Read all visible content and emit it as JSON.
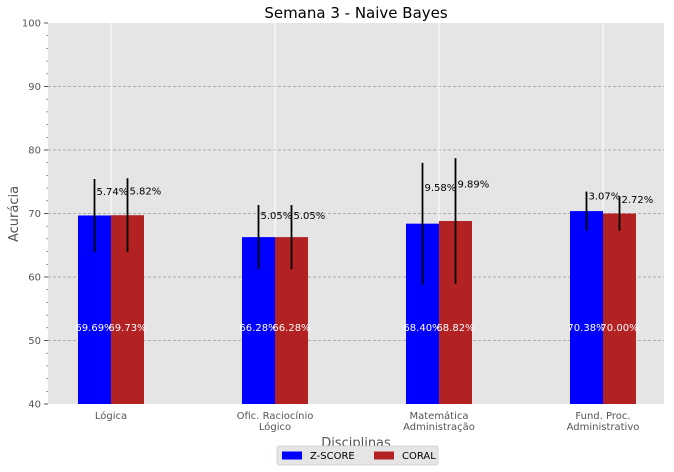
{
  "chart_data": {
    "type": "bar",
    "title": "Semana 3 - Naive Bayes",
    "xlabel": "Disciplinas",
    "ylabel": "Acurácia",
    "ylim": [
      40,
      100
    ],
    "yticks": [
      40,
      50,
      60,
      70,
      80,
      90,
      100
    ],
    "grid": true,
    "legend_position": "bottom-center",
    "categories": [
      [
        "Lógica"
      ],
      [
        "Ofic. Raciocínio",
        "Lógico"
      ],
      [
        "Matemática",
        "Administração"
      ],
      [
        "Fund. Proc.",
        "Administrativo"
      ]
    ],
    "series": [
      {
        "name": "Z-SCORE",
        "color": "#0000ff",
        "values": [
          69.69,
          66.28,
          68.4,
          70.38
        ],
        "value_labels": [
          "69.69%",
          "66.28%",
          "68.40%",
          "70.38%"
        ],
        "errors": [
          5.74,
          5.05,
          9.58,
          3.07
        ],
        "error_labels": [
          "5.74%",
          "5.05%",
          "9.58%",
          "3.07%"
        ]
      },
      {
        "name": "CORAL",
        "color": "#b22222",
        "values": [
          69.73,
          66.28,
          68.82,
          70.0
        ],
        "value_labels": [
          "69.73%",
          "66.28%",
          "68.82%",
          "70.00%"
        ],
        "errors": [
          5.82,
          5.05,
          9.89,
          2.72
        ],
        "error_labels": [
          "5.82%",
          "5.05%",
          "9.89%",
          "2.72%"
        ]
      }
    ]
  }
}
